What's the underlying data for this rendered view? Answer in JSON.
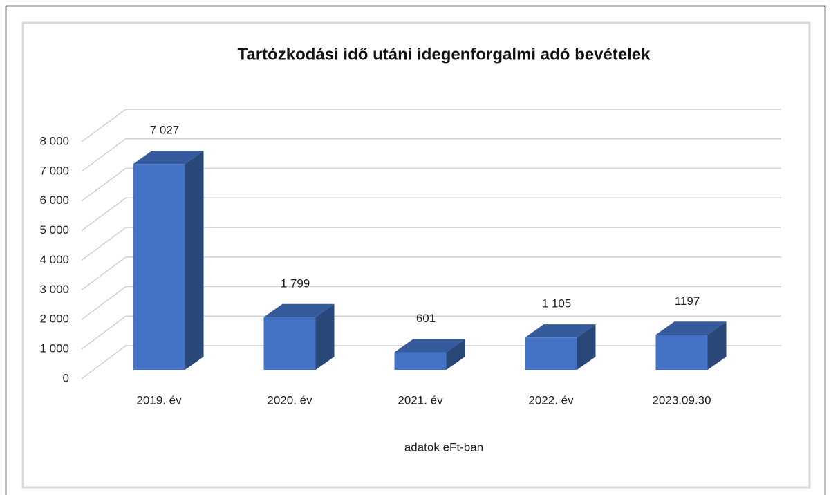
{
  "chart_data": {
    "type": "bar3d",
    "title": "Tartózkodási idő utáni idegenforgalmi adó bevételek",
    "x_label": "adatok eFt-ban",
    "categories": [
      "2019. év",
      "2020. év",
      "2021. év",
      "2022. év",
      "2023.09.30"
    ],
    "values": [
      7027,
      1799,
      601,
      1105,
      1197
    ],
    "value_labels": [
      "7 027",
      "1 799",
      "601",
      "1 105",
      "1197"
    ],
    "color": "#4472c4",
    "ylim": [
      0,
      8000
    ],
    "yticks": [
      0,
      {
        "value": 1000,
        "label": "1 000"
      },
      {
        "value": 2000,
        "label": "2 000"
      },
      {
        "value": 3000,
        "label": "3 000"
      },
      {
        "value": 4000,
        "label": "4 000"
      },
      {
        "value": 5000,
        "label": "5 000"
      },
      {
        "value": 6000,
        "label": "6 000"
      },
      {
        "value": 7000,
        "label": "7 000"
      },
      {
        "value": 8000,
        "label": "8 000"
      }
    ],
    "grid": true
  }
}
